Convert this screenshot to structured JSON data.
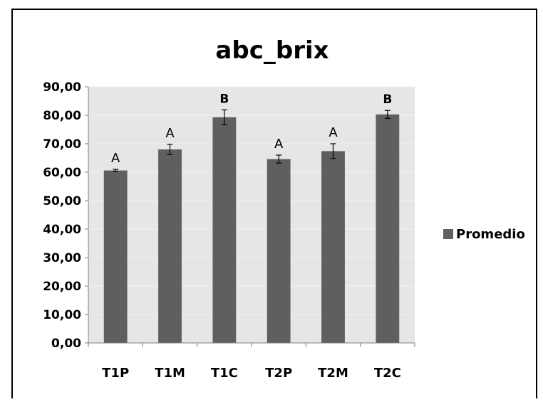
{
  "chart_data": {
    "type": "bar",
    "title": "abc_brix",
    "categories": [
      "T1P",
      "T1M",
      "T1C",
      "T2P",
      "T2M",
      "T2C"
    ],
    "series": [
      {
        "name": "Promedio",
        "values": [
          60.6,
          68.0,
          79.3,
          64.6,
          67.4,
          80.3
        ],
        "error": [
          0.4,
          1.8,
          2.6,
          1.4,
          2.6,
          1.4
        ],
        "significance_labels": [
          "A",
          "A",
          "B",
          "A",
          "A",
          "B"
        ]
      }
    ],
    "y_ticks": [
      "0,00",
      "10,00",
      "20,00",
      "30,00",
      "40,00",
      "50,00",
      "60,00",
      "70,00",
      "80,00",
      "90,00"
    ],
    "ylim": [
      0,
      90
    ],
    "y_step": 10,
    "grid": true,
    "legend_position": "right",
    "colors": {
      "bar": "#5f5f5f",
      "plot_bg": "#e6e6e6",
      "gridline": "#f2f2f2",
      "axis": "#7f7f7f",
      "text": "#000000"
    }
  }
}
